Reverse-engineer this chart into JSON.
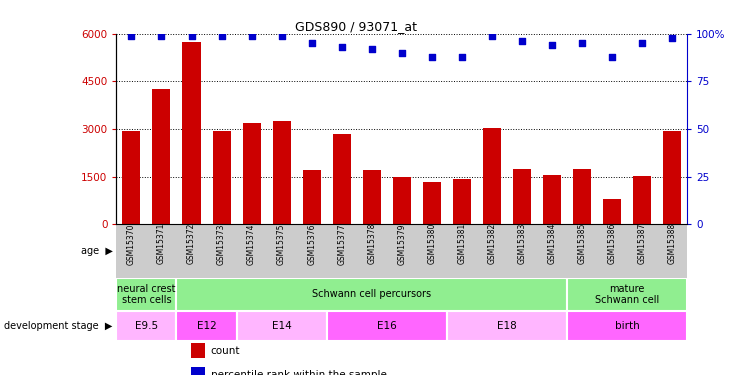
{
  "title": "GDS890 / 93071_at",
  "samples": [
    "GSM15370",
    "GSM15371",
    "GSM15372",
    "GSM15373",
    "GSM15374",
    "GSM15375",
    "GSM15376",
    "GSM15377",
    "GSM15378",
    "GSM15379",
    "GSM15380",
    "GSM15381",
    "GSM15382",
    "GSM15383",
    "GSM15384",
    "GSM15385",
    "GSM15386",
    "GSM15387",
    "GSM15388"
  ],
  "counts": [
    2950,
    4250,
    5750,
    2950,
    3200,
    3250,
    1700,
    2850,
    1700,
    1480,
    1350,
    1420,
    3050,
    1750,
    1550,
    1750,
    800,
    1520,
    2950
  ],
  "percentiles": [
    99,
    99,
    99,
    99,
    99,
    99,
    95,
    93,
    92,
    90,
    88,
    88,
    99,
    96,
    94,
    95,
    88,
    95,
    98
  ],
  "bar_color": "#cc0000",
  "dot_color": "#0000cc",
  "ylim_left": [
    0,
    6000
  ],
  "ylim_right": [
    0,
    100
  ],
  "yticks_left": [
    0,
    1500,
    3000,
    4500,
    6000
  ],
  "yticks_right": [
    0,
    25,
    50,
    75,
    100
  ],
  "yticklabels_left": [
    "0",
    "1500",
    "3000",
    "4500",
    "6000"
  ],
  "yticklabels_right": [
    "0",
    "25",
    "50",
    "75",
    "100%"
  ],
  "stage_groups": [
    {
      "label": "neural crest\nstem cells",
      "start": 0,
      "end": 2,
      "color": "#90ee90"
    },
    {
      "label": "Schwann cell percursors",
      "start": 2,
      "end": 15,
      "color": "#90ee90"
    },
    {
      "label": "mature\nSchwann cell",
      "start": 15,
      "end": 19,
      "color": "#90ee90"
    }
  ],
  "age_groups": [
    {
      "label": "E9.5",
      "start": 0,
      "end": 2,
      "color": "#ffb6ff"
    },
    {
      "label": "E12",
      "start": 2,
      "end": 4,
      "color": "#ff66ff"
    },
    {
      "label": "E14",
      "start": 4,
      "end": 7,
      "color": "#ffb6ff"
    },
    {
      "label": "E16",
      "start": 7,
      "end": 11,
      "color": "#ff66ff"
    },
    {
      "label": "E18",
      "start": 11,
      "end": 15,
      "color": "#ffb6ff"
    },
    {
      "label": "birth",
      "start": 15,
      "end": 19,
      "color": "#ff66ff"
    }
  ],
  "dev_stage_label": "development stage",
  "age_label": "age",
  "legend_count_label": "count",
  "legend_pct_label": "percentile rank within the sample",
  "background_color": "#ffffff",
  "grid_color": "#000000",
  "tick_label_color_left": "#cc0000",
  "tick_label_color_right": "#0000cc",
  "xlabel_bg_color": "#cccccc"
}
